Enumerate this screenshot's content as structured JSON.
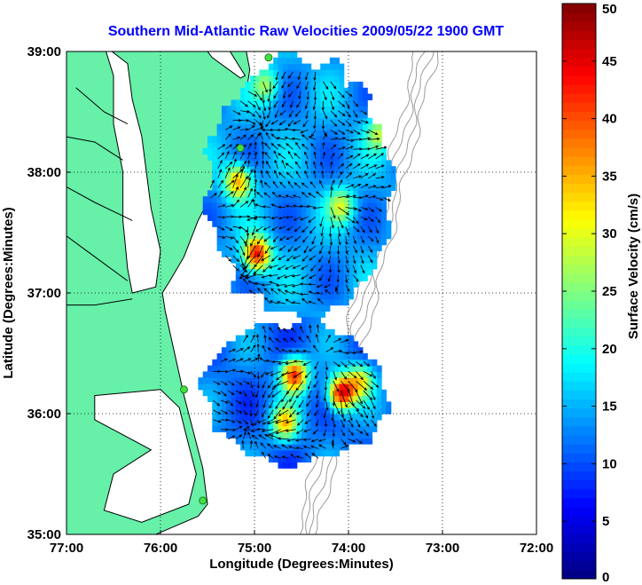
{
  "chart_data": {
    "type": "heatmap",
    "title": "Southern Mid-Atlantic Raw Velocities 2009/05/22 1900 GMT",
    "xlabel": "Longitude (Degrees:Minutes)",
    "ylabel": "Latitude (Degrees:Minutes)",
    "x_ticks": [
      -77,
      -76,
      -75,
      -74,
      -73,
      -72
    ],
    "x_tick_labels": [
      "77:00",
      "76:00",
      "75:00",
      "74:00",
      "73:00",
      "72:00"
    ],
    "y_ticks": [
      35,
      36,
      37,
      38,
      39
    ],
    "y_tick_labels": [
      "35:00",
      "36:00",
      "37:00",
      "38:00",
      "39:00"
    ],
    "xlim": [
      -77,
      -72
    ],
    "ylim": [
      35,
      39
    ],
    "grid": true,
    "colorbar": {
      "label": "Surface Velocity (cm/s)",
      "range": [
        0,
        50
      ],
      "ticks": [
        0,
        5,
        10,
        15,
        20,
        25,
        30,
        35,
        40,
        45,
        50
      ],
      "tick_labels": [
        "0",
        "5",
        "10",
        "15",
        "20",
        "25",
        "30",
        "35",
        "40",
        "45",
        "50"
      ],
      "colormap": "jet"
    },
    "field_regions": [
      {
        "name": "northern",
        "lon_range": [
          -75.55,
          -73.55
        ],
        "lat_range": [
          36.75,
          38.95
        ],
        "hotspots": [
          {
            "lon": -75.0,
            "lat": 37.3,
            "speed": 44
          },
          {
            "lon": -75.2,
            "lat": 37.9,
            "speed": 36
          },
          {
            "lon": -74.1,
            "lat": 37.7,
            "speed": 28
          },
          {
            "lon": -73.7,
            "lat": 38.3,
            "speed": 27
          },
          {
            "lon": -74.9,
            "lat": 38.7,
            "speed": 26
          }
        ],
        "background_speed": 14
      },
      {
        "name": "southern",
        "lon_range": [
          -75.6,
          -73.6
        ],
        "lat_range": [
          35.55,
          36.75
        ],
        "hotspots": [
          {
            "lon": -74.1,
            "lat": 36.15,
            "speed": 46
          },
          {
            "lon": -74.6,
            "lat": 36.3,
            "speed": 42
          },
          {
            "lon": -74.7,
            "lat": 35.9,
            "speed": 33
          },
          {
            "lon": -73.9,
            "lat": 36.25,
            "speed": 30
          }
        ],
        "background_speed": 12
      }
    ],
    "radar_sites": [
      {
        "lon": -74.85,
        "lat": 38.95
      },
      {
        "lon": -75.15,
        "lat": 38.2
      },
      {
        "lon": -75.75,
        "lat": 36.2
      },
      {
        "lon": -75.55,
        "lat": 35.28
      }
    ],
    "colors": {
      "land": "#66f0a8",
      "water": "#ffffff",
      "arrows": "#000000",
      "coastline": "#000000",
      "bathymetry": "#9a9a9a",
      "grid": "#000000",
      "radar_site": "#40e040"
    }
  }
}
